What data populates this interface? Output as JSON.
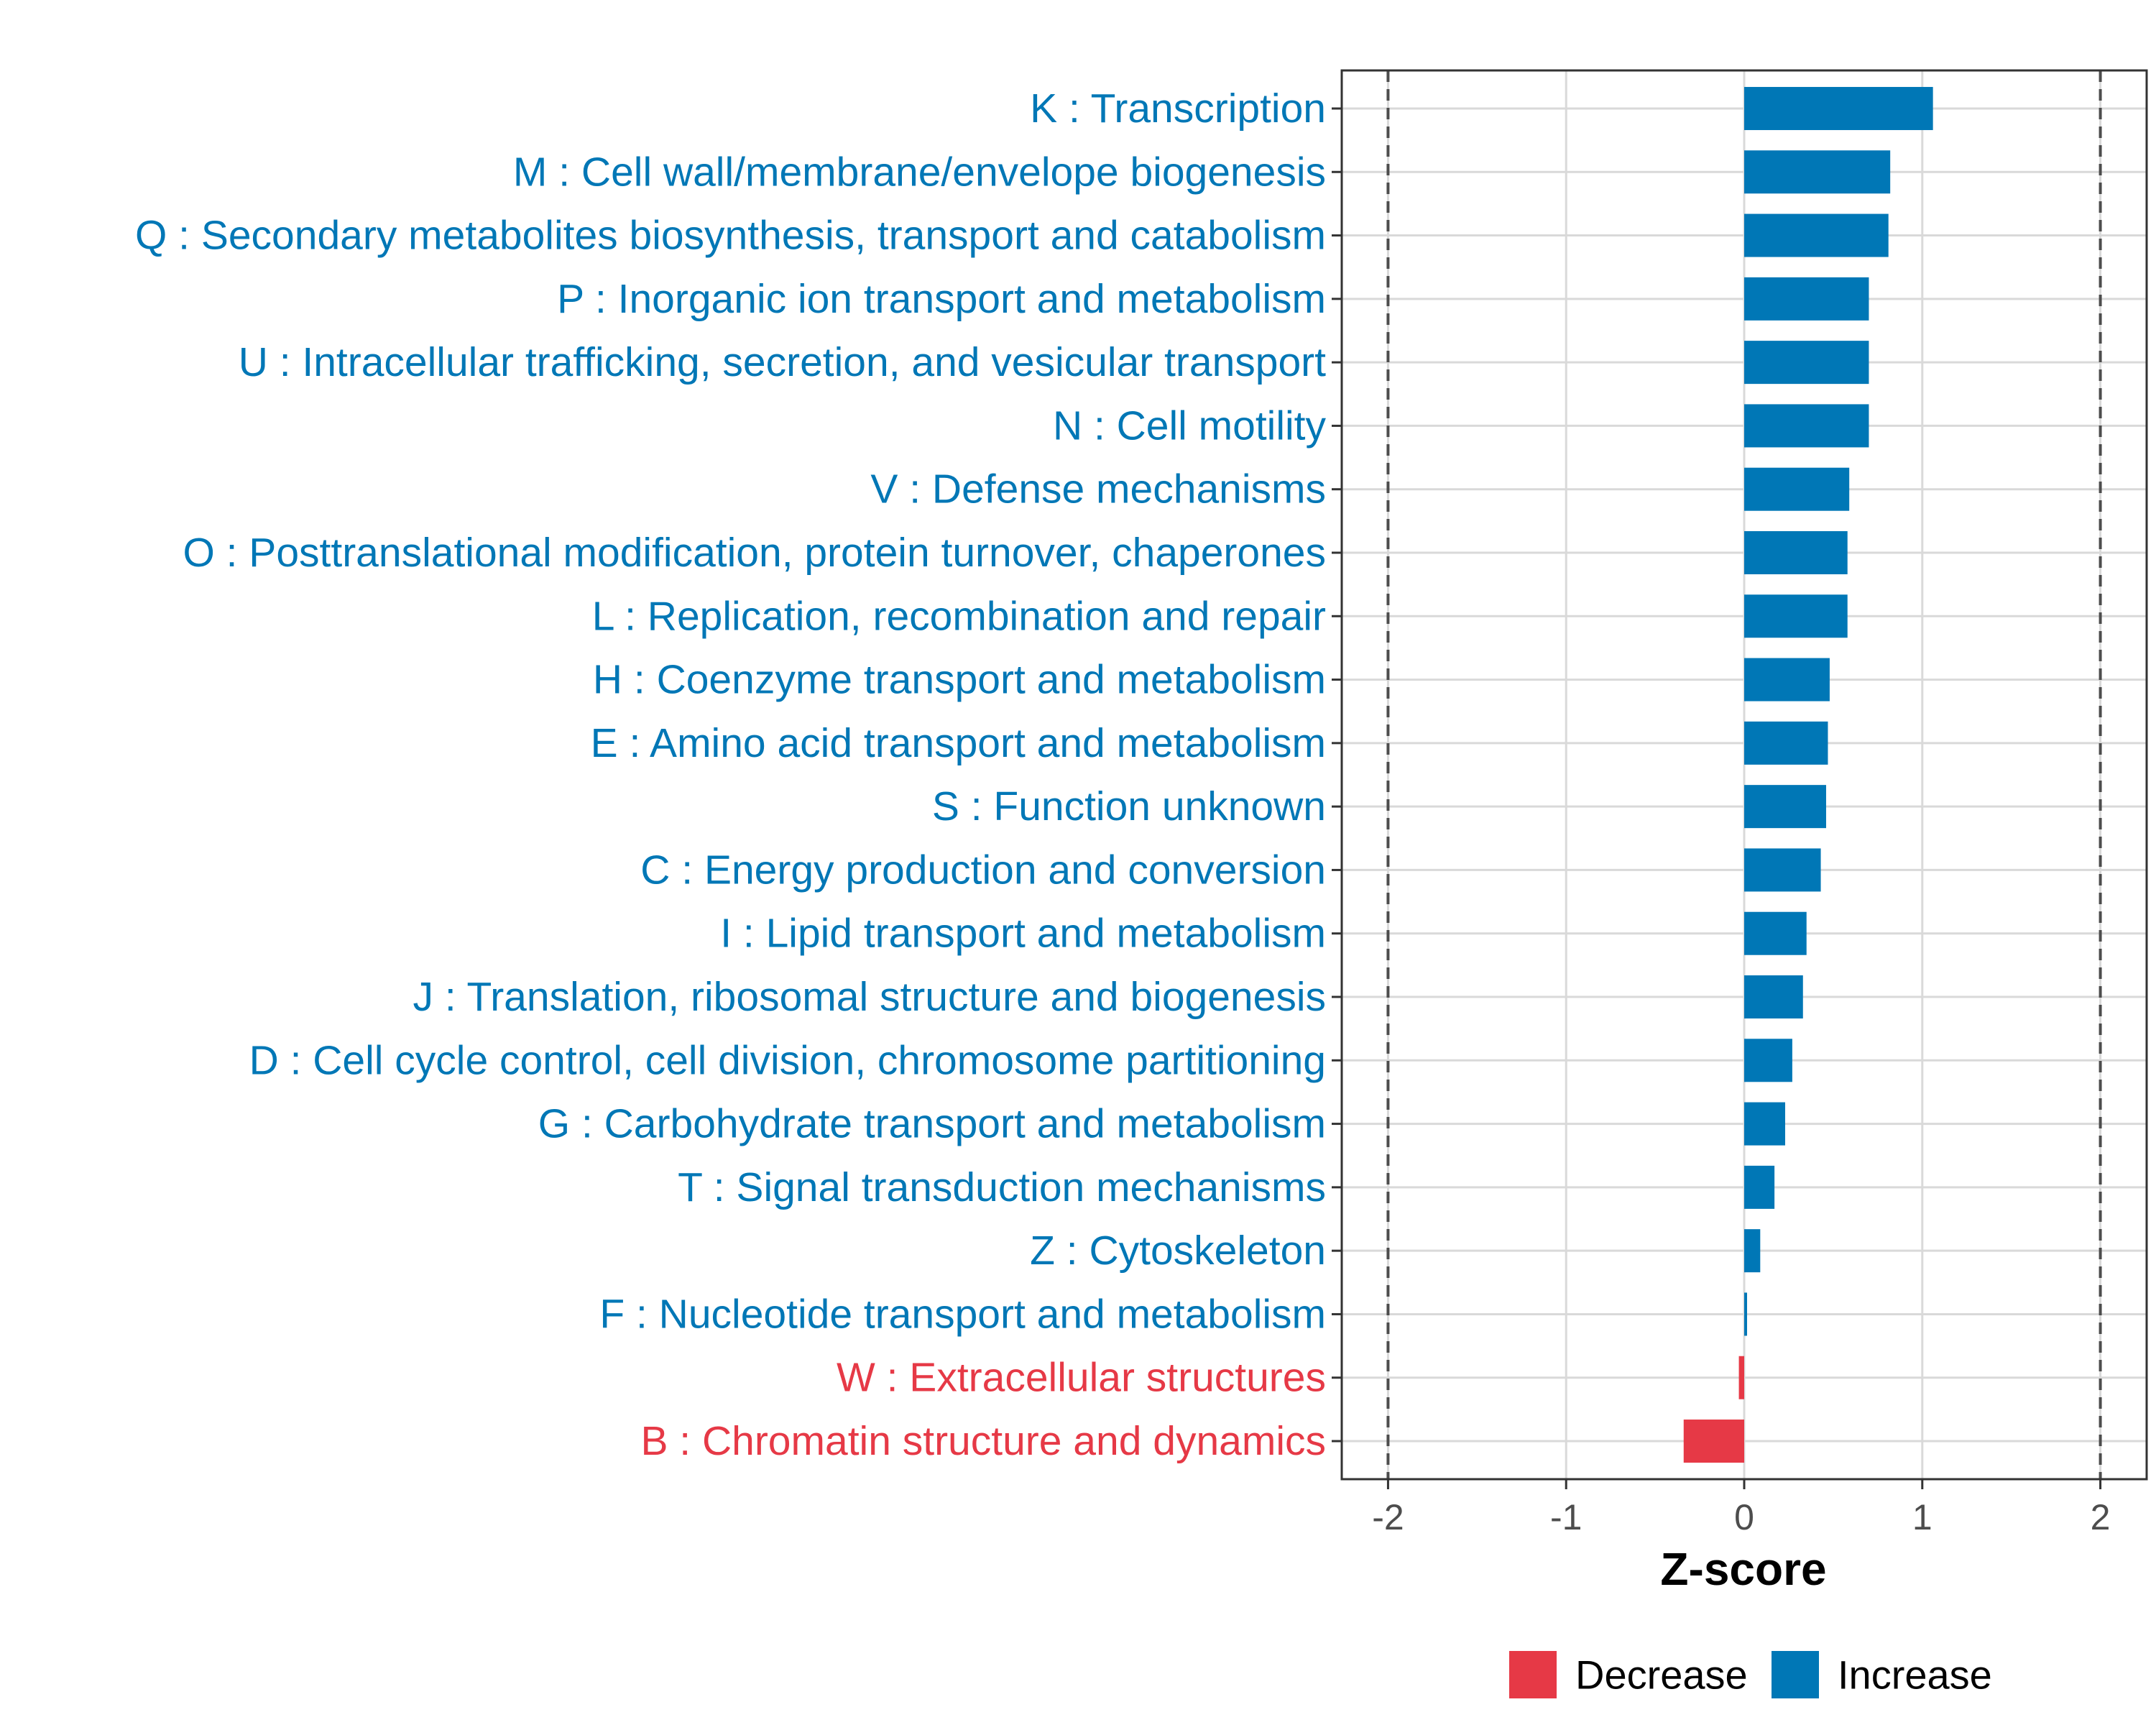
{
  "chart_data": {
    "type": "bar",
    "orientation": "horizontal",
    "categories": [
      "K : Transcription",
      "M : Cell wall/membrane/envelope biogenesis",
      "Q : Secondary metabolites biosynthesis, transport and catabolism",
      "P : Inorganic ion transport and metabolism",
      "U : Intracellular trafficking, secretion, and vesicular transport",
      "N : Cell motility",
      "V : Defense mechanisms",
      "O : Posttranslational modification, protein turnover, chaperones",
      "L : Replication, recombination and repair",
      "H : Coenzyme transport and metabolism",
      "E : Amino acid transport and metabolism",
      "S : Function unknown",
      "C : Energy production and conversion",
      "I : Lipid transport and metabolism",
      "J : Translation, ribosomal structure and biogenesis",
      "D : Cell cycle control, cell division, chromosome partitioning",
      "G : Carbohydrate transport and metabolism",
      "T : Signal transduction mechanisms",
      "Z : Cytoskeleton",
      "F : Nucleotide transport and metabolism",
      "W : Extracellular structures",
      "B : Chromatin structure and dynamics"
    ],
    "values": [
      1.06,
      0.82,
      0.81,
      0.7,
      0.7,
      0.7,
      0.59,
      0.58,
      0.58,
      0.48,
      0.47,
      0.46,
      0.43,
      0.35,
      0.33,
      0.27,
      0.23,
      0.17,
      0.09,
      0.01,
      -0.03,
      -0.34
    ],
    "groups": [
      "Increase",
      "Increase",
      "Increase",
      "Increase",
      "Increase",
      "Increase",
      "Increase",
      "Increase",
      "Increase",
      "Increase",
      "Increase",
      "Increase",
      "Increase",
      "Increase",
      "Increase",
      "Increase",
      "Increase",
      "Increase",
      "Increase",
      "Increase",
      "Decrease",
      "Decrease"
    ],
    "title": "",
    "xlabel": "Z-score",
    "ylabel": "",
    "xlim": [
      -2.26,
      2.26
    ],
    "xticks": [
      "-2",
      "-1",
      "0",
      "1",
      "2"
    ],
    "xtick_values": [
      -2,
      -1,
      0,
      1,
      2
    ],
    "reference_lines": [
      -2,
      2
    ],
    "grid": true,
    "legend": {
      "position": "bottom",
      "entries": [
        {
          "label": "Decrease",
          "color": "#E63946"
        },
        {
          "label": "Increase",
          "color": "#0077B6"
        }
      ]
    }
  },
  "colors": {
    "increase": "#0077B6",
    "decrease": "#E63946",
    "grid": "#d9d9d9",
    "panel_border": "#333333",
    "reference_line": "#4d4d4d"
  }
}
